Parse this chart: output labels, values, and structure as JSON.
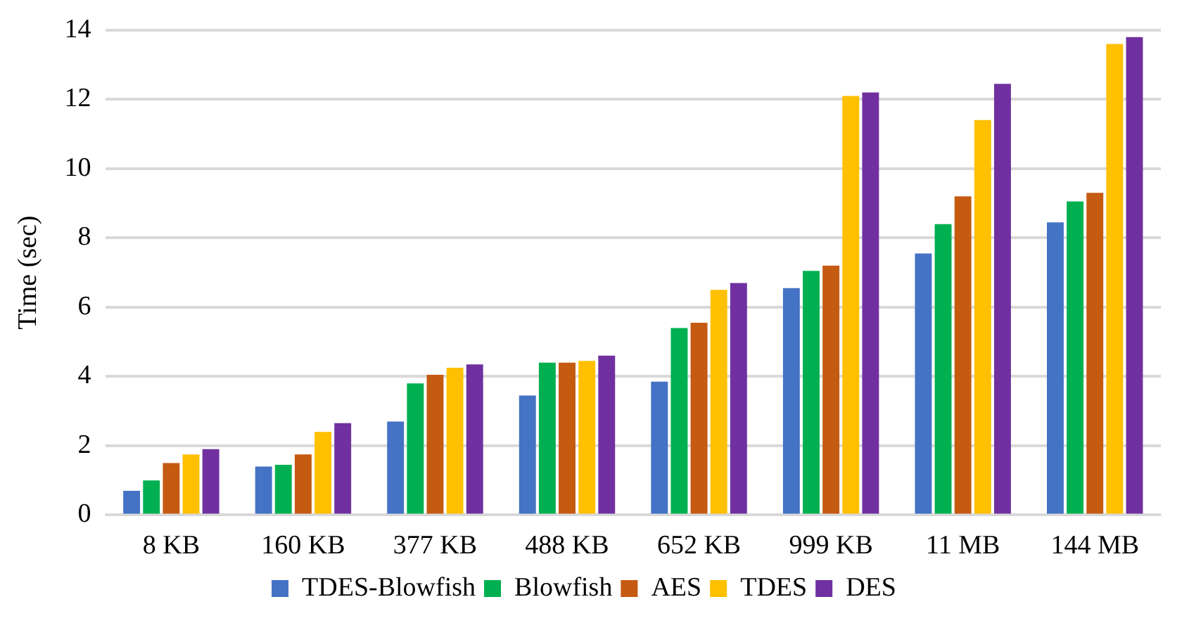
{
  "chart_data": {
    "type": "bar",
    "ylabel": "Time (sec)",
    "categories": [
      "8 KB",
      "160 KB",
      "377 KB",
      "488 KB",
      "652 KB",
      "999 KB",
      "11 MB",
      "144 MB"
    ],
    "series": [
      {
        "name": "TDES-Blowfish",
        "color": "#4472c4",
        "values": [
          0.7,
          1.4,
          2.7,
          3.45,
          3.85,
          6.55,
          7.55,
          8.45
        ]
      },
      {
        "name": "Blowfish",
        "color": "#00b050",
        "values": [
          1.0,
          1.45,
          3.8,
          4.4,
          5.4,
          7.05,
          8.4,
          9.05
        ]
      },
      {
        "name": "AES",
        "color": "#c55a11",
        "values": [
          1.5,
          1.75,
          4.05,
          4.4,
          5.55,
          7.2,
          9.2,
          9.3
        ]
      },
      {
        "name": "TDES",
        "color": "#ffc000",
        "values": [
          1.75,
          2.4,
          4.25,
          4.45,
          6.5,
          12.1,
          11.4,
          13.6
        ]
      },
      {
        "name": "DES",
        "color": "#7030a0",
        "values": [
          1.9,
          2.65,
          4.35,
          4.6,
          6.7,
          12.2,
          12.45,
          13.8
        ]
      }
    ],
    "ylim": [
      0,
      14
    ],
    "yticks": [
      0,
      2,
      4,
      6,
      8,
      10,
      12,
      14
    ],
    "grid": "y",
    "legend": "bottom"
  }
}
